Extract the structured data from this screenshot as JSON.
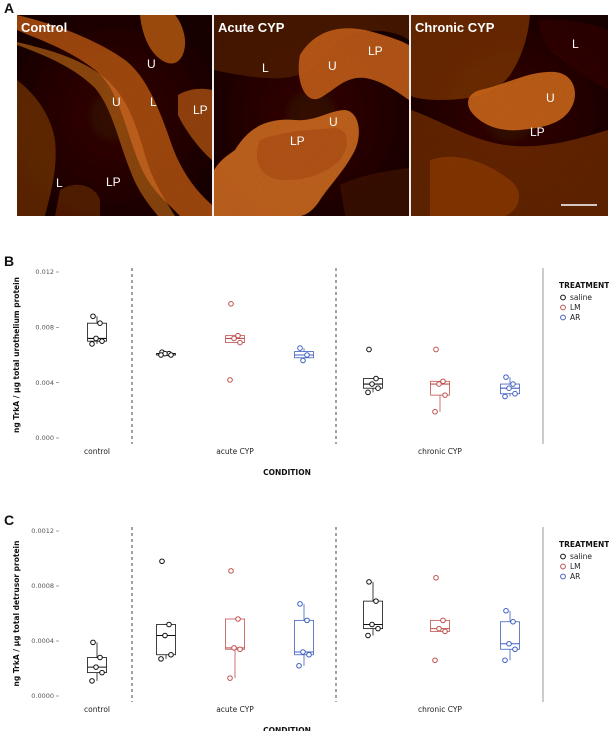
{
  "panels": {
    "a": {
      "letter": "A",
      "images": [
        {
          "title": "Control",
          "labels": [
            {
              "text": "U"
            },
            {
              "text": "U"
            },
            {
              "text": "L"
            },
            {
              "text": "LP"
            },
            {
              "text": "L"
            },
            {
              "text": "LP"
            }
          ]
        },
        {
          "title": "Acute CYP",
          "labels": [
            {
              "text": "L"
            },
            {
              "text": "U"
            },
            {
              "text": "LP"
            },
            {
              "text": "U"
            },
            {
              "text": "LP"
            }
          ]
        },
        {
          "title": "Chronic CYP",
          "labels": [
            {
              "text": "L"
            },
            {
              "text": "U"
            },
            {
              "text": "LP"
            }
          ]
        }
      ]
    },
    "b": {
      "letter": "B"
    },
    "c": {
      "letter": "C"
    }
  },
  "colors": {
    "saline": "#111111",
    "LM": "#c0504d",
    "AR": "#4060c0",
    "tissue_bright": "#d2671f",
    "tissue_dark": "#2a0d02"
  },
  "chart_data": [
    {
      "type": "boxplot",
      "panel": "B",
      "title": "",
      "ylabel": "ng TrkA / µg total urothelium protein",
      "xlabel": "CONDITION",
      "ylim": [
        0,
        0.012
      ],
      "yticks": [
        "0.000",
        "0.004",
        "0.008",
        "0.012"
      ],
      "ytick_values": [
        0,
        0.004,
        0.008,
        0.012
      ],
      "conditions": [
        "control",
        "acute CYP",
        "chronic CYP"
      ],
      "legend": {
        "title": "TREATMENT",
        "position": "right",
        "entries": [
          "saline",
          "LM",
          "AR"
        ]
      },
      "groups": [
        {
          "condition": "control",
          "treatment": "saline",
          "points": [
            0.0088,
            0.0083,
            0.0072,
            0.007,
            0.0068
          ]
        },
        {
          "condition": "acute CYP",
          "treatment": "saline",
          "points": [
            0.0062,
            0.0061,
            0.0061,
            0.006,
            0.006
          ]
        },
        {
          "condition": "acute CYP",
          "treatment": "LM",
          "points": [
            0.0097,
            0.0074,
            0.0072,
            0.0069,
            0.0042
          ]
        },
        {
          "condition": "acute CYP",
          "treatment": "AR",
          "points": [
            0.0065,
            0.006,
            0.0056
          ]
        },
        {
          "condition": "chronic CYP",
          "treatment": "saline",
          "points": [
            0.0064,
            0.0043,
            0.0039,
            0.0036,
            0.0033
          ]
        },
        {
          "condition": "chronic CYP",
          "treatment": "LM",
          "points": [
            0.0064,
            0.0041,
            0.0039,
            0.0031,
            0.0019
          ]
        },
        {
          "condition": "chronic CYP",
          "treatment": "AR",
          "points": [
            0.0044,
            0.0039,
            0.0036,
            0.0032,
            0.003
          ]
        }
      ]
    },
    {
      "type": "boxplot",
      "panel": "C",
      "title": "",
      "ylabel": "ng TrkA / µg total detrusor protein",
      "xlabel": "CONDITION",
      "ylim": [
        0,
        0.0012
      ],
      "yticks": [
        "0.0000",
        "0.0004",
        "0.0008",
        "0.0012"
      ],
      "ytick_values": [
        0,
        0.0004,
        0.0008,
        0.0012
      ],
      "conditions": [
        "control",
        "acute CYP",
        "chronic CYP"
      ],
      "legend": {
        "title": "TREATMENT",
        "position": "right",
        "entries": [
          "saline",
          "LM",
          "AR"
        ]
      },
      "groups": [
        {
          "condition": "control",
          "treatment": "saline",
          "points": [
            0.00039,
            0.00028,
            0.00021,
            0.00017,
            0.00011
          ]
        },
        {
          "condition": "acute CYP",
          "treatment": "saline",
          "points": [
            0.00098,
            0.00052,
            0.00044,
            0.0003,
            0.00027
          ]
        },
        {
          "condition": "acute CYP",
          "treatment": "LM",
          "points": [
            0.00091,
            0.00056,
            0.00035,
            0.00034,
            0.00013
          ]
        },
        {
          "condition": "acute CYP",
          "treatment": "AR",
          "points": [
            0.00067,
            0.00055,
            0.00032,
            0.0003,
            0.00022
          ]
        },
        {
          "condition": "chronic CYP",
          "treatment": "saline",
          "points": [
            0.00083,
            0.00069,
            0.00052,
            0.00049,
            0.00044
          ]
        },
        {
          "condition": "chronic CYP",
          "treatment": "LM",
          "points": [
            0.00086,
            0.00055,
            0.00049,
            0.00047,
            0.00026
          ]
        },
        {
          "condition": "chronic CYP",
          "treatment": "AR",
          "points": [
            0.00062,
            0.00054,
            0.00038,
            0.00034,
            0.00026
          ]
        }
      ]
    }
  ]
}
